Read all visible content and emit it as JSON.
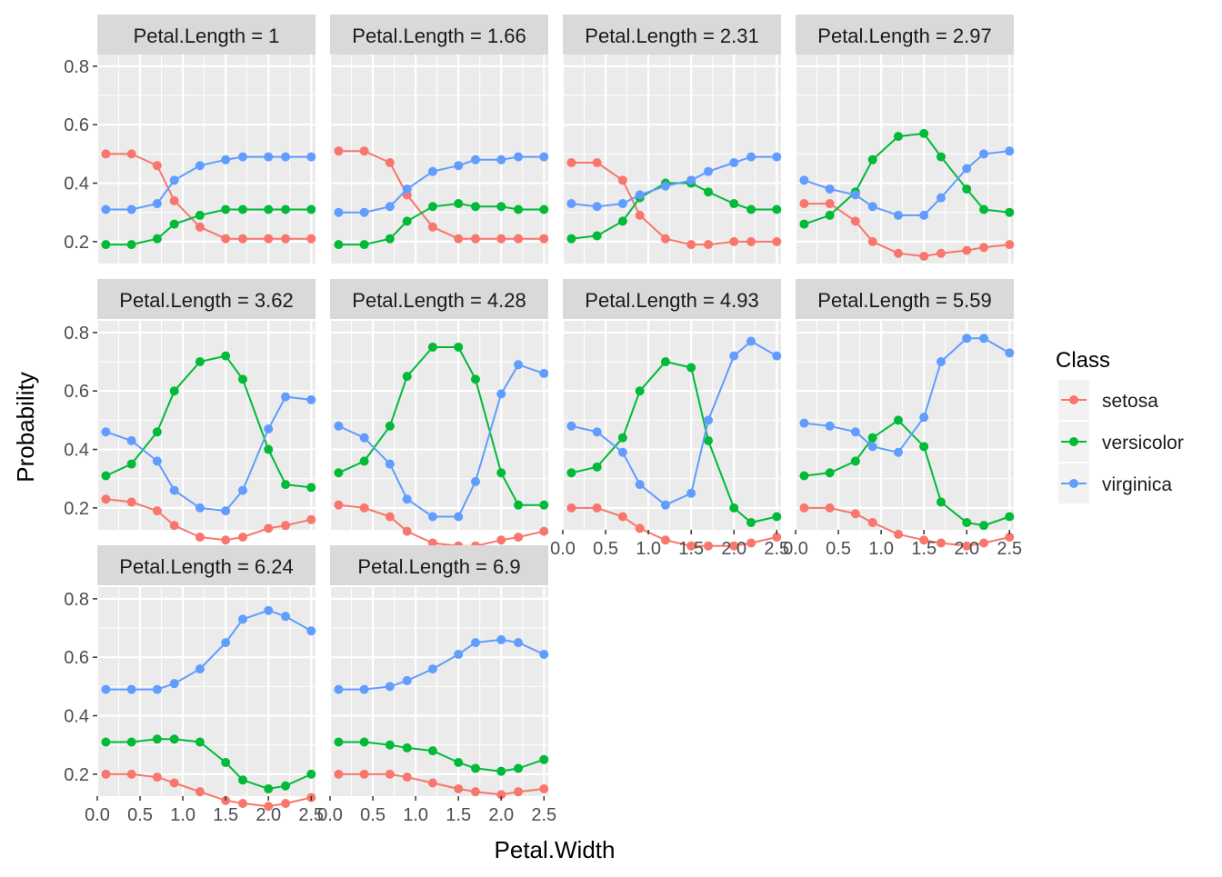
{
  "chart_data": {
    "type": "line",
    "xlabel": "Petal.Width",
    "ylabel": "Probability",
    "x": [
      0.1,
      0.4,
      0.7,
      0.9,
      1.2,
      1.5,
      1.7,
      2.0,
      2.2,
      2.5
    ],
    "xticks": [
      "0.0",
      "0.5",
      "1.0",
      "1.5",
      "2.0",
      "2.5"
    ],
    "yticks": [
      "0.2",
      "0.4",
      "0.6",
      "0.8"
    ],
    "xlim": [
      0.0,
      2.55
    ],
    "ylim": [
      0.125,
      0.84
    ],
    "legend": {
      "title": "Class",
      "placement": "right",
      "entries": [
        "setosa",
        "versicolor",
        "virginica"
      ]
    },
    "colors": {
      "setosa": "#F8766D",
      "versicolor": "#00BA38",
      "virginica": "#619CFF"
    },
    "panels": [
      {
        "label": "Petal.Length = 1",
        "setosa": [
          0.5,
          0.5,
          0.46,
          0.34,
          0.25,
          0.21,
          0.21,
          0.21,
          0.21,
          0.21
        ],
        "versicolor": [
          0.19,
          0.19,
          0.21,
          0.26,
          0.29,
          0.31,
          0.31,
          0.31,
          0.31,
          0.31
        ],
        "virginica": [
          0.31,
          0.31,
          0.33,
          0.41,
          0.46,
          0.48,
          0.49,
          0.49,
          0.49,
          0.49
        ]
      },
      {
        "label": "Petal.Length = 1.66",
        "setosa": [
          0.51,
          0.51,
          0.47,
          0.36,
          0.25,
          0.21,
          0.21,
          0.21,
          0.21,
          0.21
        ],
        "versicolor": [
          0.19,
          0.19,
          0.21,
          0.27,
          0.32,
          0.33,
          0.32,
          0.32,
          0.31,
          0.31
        ],
        "virginica": [
          0.3,
          0.3,
          0.32,
          0.38,
          0.44,
          0.46,
          0.48,
          0.48,
          0.49,
          0.49
        ]
      },
      {
        "label": "Petal.Length = 2.31",
        "setosa": [
          0.47,
          0.47,
          0.41,
          0.29,
          0.21,
          0.19,
          0.19,
          0.2,
          0.2,
          0.2
        ],
        "versicolor": [
          0.21,
          0.22,
          0.27,
          0.35,
          0.4,
          0.4,
          0.37,
          0.33,
          0.31,
          0.31
        ],
        "virginica": [
          0.33,
          0.32,
          0.33,
          0.36,
          0.39,
          0.41,
          0.44,
          0.47,
          0.49,
          0.49
        ]
      },
      {
        "label": "Petal.Length = 2.97",
        "setosa": [
          0.33,
          0.33,
          0.27,
          0.2,
          0.16,
          0.15,
          0.16,
          0.17,
          0.18,
          0.19
        ],
        "versicolor": [
          0.26,
          0.29,
          0.37,
          0.48,
          0.56,
          0.57,
          0.49,
          0.38,
          0.31,
          0.3
        ],
        "virginica": [
          0.41,
          0.38,
          0.36,
          0.32,
          0.29,
          0.29,
          0.35,
          0.45,
          0.5,
          0.51
        ]
      },
      {
        "label": "Petal.Length = 3.62",
        "setosa": [
          0.23,
          0.22,
          0.19,
          0.14,
          0.1,
          0.09,
          0.1,
          0.13,
          0.14,
          0.16
        ],
        "versicolor": [
          0.31,
          0.35,
          0.46,
          0.6,
          0.7,
          0.72,
          0.64,
          0.4,
          0.28,
          0.27
        ],
        "virginica": [
          0.46,
          0.43,
          0.36,
          0.26,
          0.2,
          0.19,
          0.26,
          0.47,
          0.58,
          0.57
        ]
      },
      {
        "label": "Petal.Length = 4.28",
        "setosa": [
          0.21,
          0.2,
          0.17,
          0.12,
          0.08,
          0.07,
          0.07,
          0.09,
          0.1,
          0.12
        ],
        "versicolor": [
          0.32,
          0.36,
          0.48,
          0.65,
          0.75,
          0.75,
          0.64,
          0.32,
          0.21,
          0.21
        ],
        "virginica": [
          0.48,
          0.44,
          0.35,
          0.23,
          0.17,
          0.17,
          0.29,
          0.59,
          0.69,
          0.66
        ]
      },
      {
        "label": "Petal.Length = 4.93",
        "setosa": [
          0.2,
          0.2,
          0.17,
          0.13,
          0.09,
          0.07,
          0.07,
          0.07,
          0.08,
          0.1
        ],
        "versicolor": [
          0.32,
          0.34,
          0.44,
          0.6,
          0.7,
          0.68,
          0.43,
          0.2,
          0.15,
          0.17
        ],
        "virginica": [
          0.48,
          0.46,
          0.39,
          0.28,
          0.21,
          0.25,
          0.5,
          0.72,
          0.77,
          0.72
        ]
      },
      {
        "label": "Petal.Length = 5.59",
        "setosa": [
          0.2,
          0.2,
          0.18,
          0.15,
          0.11,
          0.09,
          0.08,
          0.07,
          0.08,
          0.1
        ],
        "versicolor": [
          0.31,
          0.32,
          0.36,
          0.44,
          0.5,
          0.41,
          0.22,
          0.15,
          0.14,
          0.17
        ],
        "virginica": [
          0.49,
          0.48,
          0.46,
          0.41,
          0.39,
          0.51,
          0.7,
          0.78,
          0.78,
          0.73
        ]
      },
      {
        "label": "Petal.Length = 6.24",
        "setosa": [
          0.2,
          0.2,
          0.19,
          0.17,
          0.14,
          0.11,
          0.1,
          0.09,
          0.1,
          0.12
        ],
        "versicolor": [
          0.31,
          0.31,
          0.32,
          0.32,
          0.31,
          0.24,
          0.18,
          0.15,
          0.16,
          0.2
        ],
        "virginica": [
          0.49,
          0.49,
          0.49,
          0.51,
          0.56,
          0.65,
          0.73,
          0.76,
          0.74,
          0.69
        ]
      },
      {
        "label": "Petal.Length = 6.9",
        "setosa": [
          0.2,
          0.2,
          0.2,
          0.19,
          0.17,
          0.15,
          0.14,
          0.13,
          0.14,
          0.15
        ],
        "versicolor": [
          0.31,
          0.31,
          0.3,
          0.29,
          0.28,
          0.24,
          0.22,
          0.21,
          0.22,
          0.25
        ],
        "virginica": [
          0.49,
          0.49,
          0.5,
          0.52,
          0.56,
          0.61,
          0.65,
          0.66,
          0.65,
          0.61
        ]
      }
    ]
  }
}
